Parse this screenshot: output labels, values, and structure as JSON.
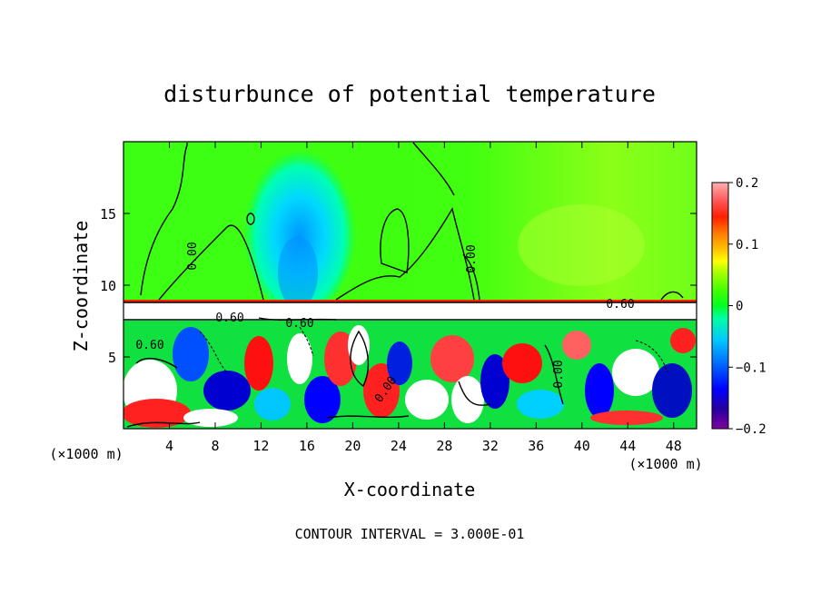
{
  "chart_data": {
    "type": "heatmap",
    "title": "disturbunce of potential temperature",
    "xlabel": "X-coordinate",
    "ylabel": "Z-coordinate",
    "xlim": [
      0,
      50
    ],
    "ylim": [
      0,
      20
    ],
    "x_ticks": [
      4,
      8,
      12,
      16,
      20,
      24,
      28,
      32,
      36,
      40,
      44,
      48
    ],
    "y_ticks": [
      5,
      10,
      15
    ],
    "x_tick_labels": [
      "4",
      "8",
      "12",
      "16",
      "20",
      "24",
      "28",
      "32",
      "36",
      "40",
      "44",
      "48"
    ],
    "y_tick_labels": [
      "5",
      "10",
      "15"
    ],
    "x_unit_label_left": "(×1000 m)",
    "x_unit_label_right": "(×1000 m)",
    "colorbar": {
      "min": -0.2,
      "max": 0.2,
      "tick_values": [
        0.2,
        0.1,
        0,
        -0.1,
        -0.2
      ],
      "tick_labels": [
        "0.2",
        "0.1",
        "0",
        "−0.1",
        "−0.2"
      ],
      "colors": [
        "#8000a0",
        "#2800a0",
        "#0000ff",
        "#0050ff",
        "#0098ff",
        "#00c8ff",
        "#00f0e0",
        "#00ff90",
        "#00ff20",
        "#40ff00",
        "#b0ff00",
        "#ffff00",
        "#ffc000",
        "#ff8000",
        "#ff3000",
        "#ff0000",
        "#ff6060",
        "#ffb0b0"
      ]
    },
    "contour_labels": [
      {
        "text": "0.00",
        "x": 5.5,
        "y": 12.0
      },
      {
        "text": "0.00",
        "x": 30.5,
        "y": 11.5
      },
      {
        "text": "0.60",
        "x": 43.5,
        "y": 8.5
      },
      {
        "text": "0.60",
        "x": 9.0,
        "y": 7.5
      },
      {
        "text": "0.60",
        "x": 15.8,
        "y": 7.3
      },
      {
        "text": "0.60",
        "x": 2.0,
        "y": 5.9
      },
      {
        "text": "0.00",
        "x": 22.8,
        "y": 2.8
      },
      {
        "text": "0.00",
        "x": 38.0,
        "y": 4.0
      }
    ],
    "annotation": "CONTOUR INTERVAL = 3.000E-01"
  }
}
